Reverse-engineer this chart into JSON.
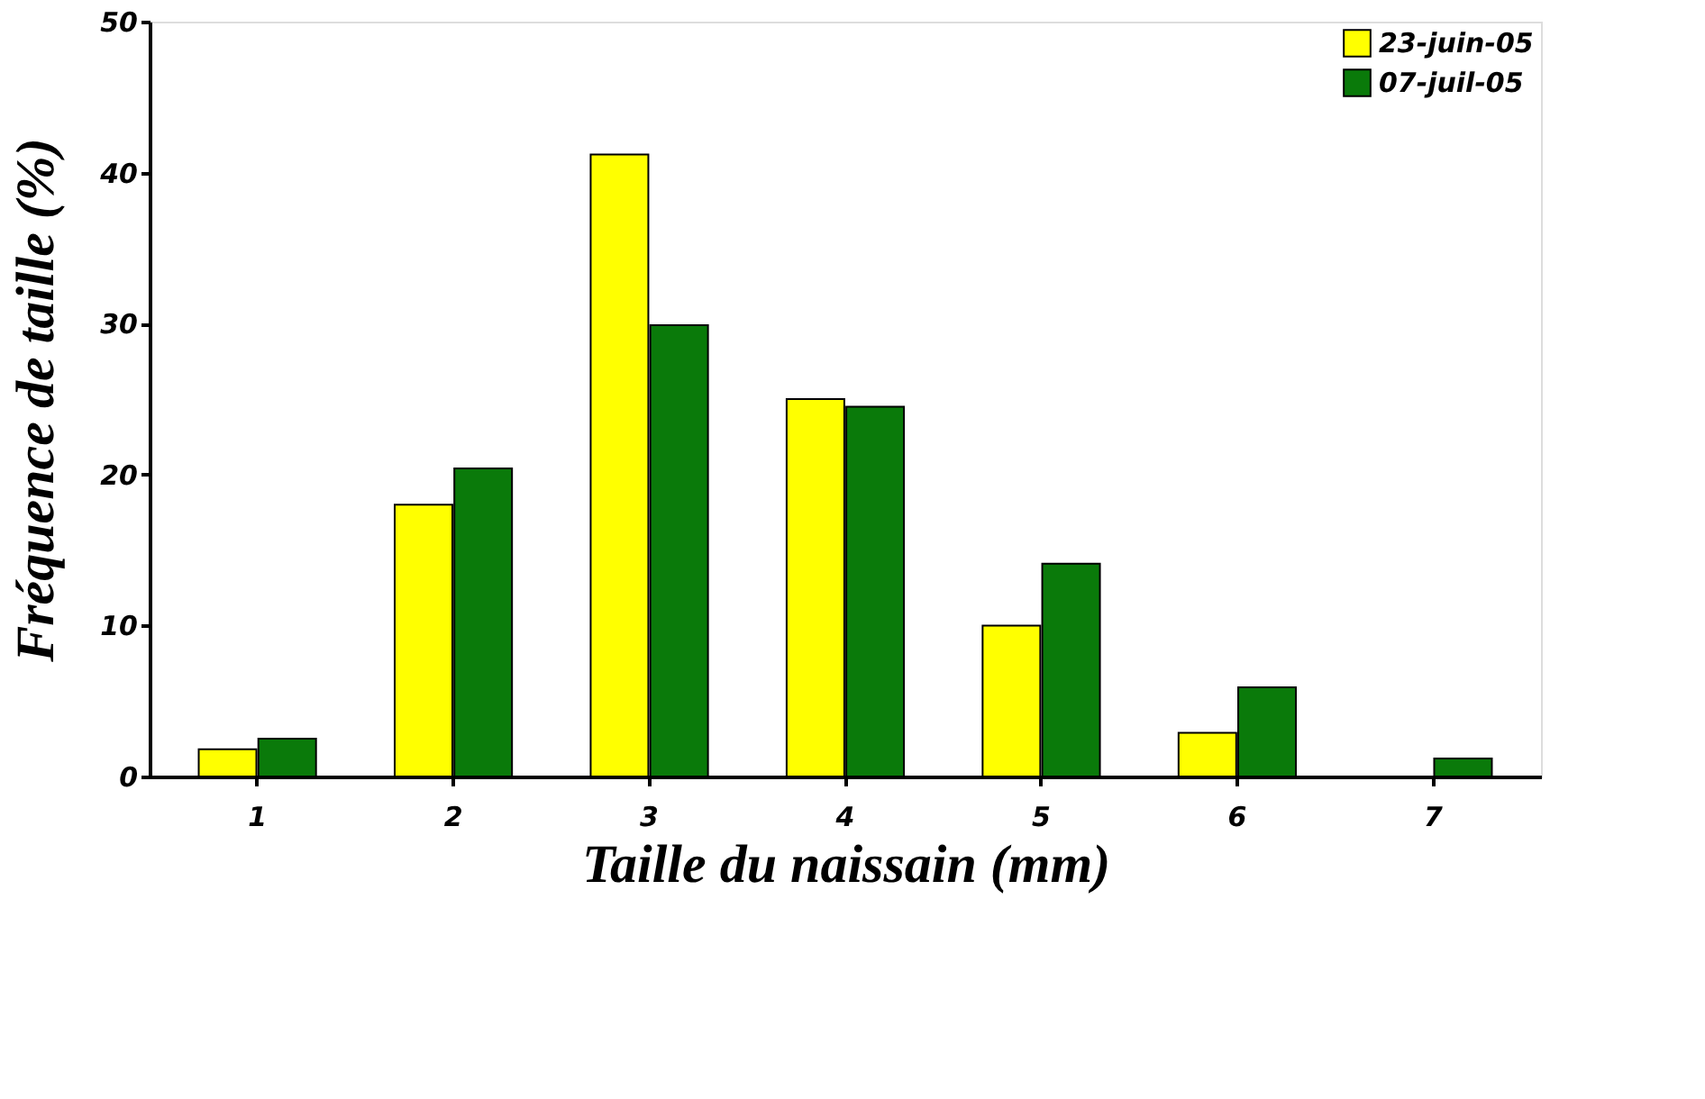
{
  "chart_data": {
    "type": "bar",
    "xlabel": "Taille du naissain (mm)",
    "ylabel": "Fréquence de taille (%)",
    "categories": [
      "1",
      "2",
      "3",
      "4",
      "5",
      "6",
      "7"
    ],
    "series": [
      {
        "name": "23-juin-05",
        "color": "#ffff00",
        "values": [
          1.8,
          18,
          41.2,
          25,
          10,
          2.9,
          null
        ]
      },
      {
        "name": "07-juil-05",
        "color": "#0a7a0a",
        "values": [
          2.5,
          20.4,
          29.9,
          24.5,
          14.1,
          5.9,
          1.2
        ]
      }
    ],
    "ylim": [
      0,
      50
    ],
    "yticks": [
      0,
      10,
      20,
      30,
      40,
      50
    ],
    "grid": false,
    "legend": "top right"
  }
}
